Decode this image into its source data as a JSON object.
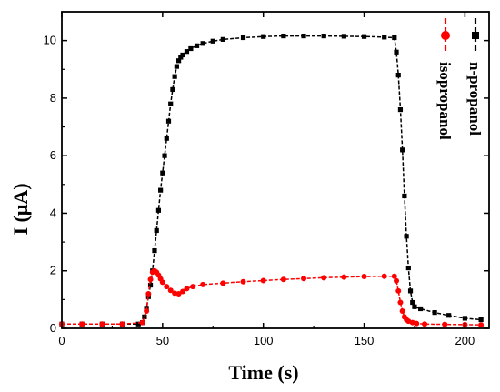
{
  "chart_data": {
    "type": "line",
    "xlabel": "Time (s)",
    "ylabel": "I (μA)",
    "xlim": [
      0,
      212
    ],
    "ylim": [
      0,
      11
    ],
    "xticks": [
      0,
      50,
      100,
      150,
      200
    ],
    "yticks": [
      0,
      2,
      4,
      6,
      8,
      10
    ],
    "legend_placement": "top-right",
    "grid": false,
    "series": [
      {
        "name": "n-propanol",
        "color": "#000000",
        "marker": "square",
        "x": [
          0,
          10,
          20,
          30,
          38,
          40,
          41,
          42,
          43,
          44,
          45,
          46,
          47,
          48,
          49,
          50,
          51,
          52,
          53,
          54,
          55,
          56,
          57,
          58,
          59,
          60,
          62,
          64,
          67,
          70,
          75,
          80,
          90,
          100,
          110,
          120,
          130,
          140,
          150,
          160,
          165,
          166,
          167,
          168,
          169,
          170,
          171,
          172,
          173,
          174,
          175,
          178,
          185,
          192,
          200,
          208
        ],
        "y": [
          0.15,
          0.15,
          0.15,
          0.15,
          0.15,
          0.2,
          0.4,
          0.7,
          1.1,
          1.5,
          2.0,
          2.7,
          3.4,
          4.1,
          4.8,
          5.4,
          6.0,
          6.6,
          7.2,
          7.8,
          8.3,
          8.75,
          9.1,
          9.3,
          9.42,
          9.5,
          9.62,
          9.72,
          9.82,
          9.9,
          9.98,
          10.04,
          10.1,
          10.14,
          10.16,
          10.16,
          10.16,
          10.15,
          10.14,
          10.12,
          10.1,
          9.6,
          8.8,
          7.6,
          6.2,
          4.6,
          3.2,
          2.1,
          1.3,
          0.9,
          0.75,
          0.68,
          0.55,
          0.45,
          0.35,
          0.3
        ]
      },
      {
        "name": "isopropanol",
        "color": "#ff0000",
        "marker": "circle",
        "x": [
          0,
          10,
          20,
          30,
          40,
          42,
          43,
          44,
          45,
          46,
          47,
          48,
          49,
          50,
          52,
          54,
          56,
          58,
          60,
          62,
          65,
          70,
          80,
          90,
          100,
          110,
          120,
          130,
          140,
          150,
          160,
          165,
          166,
          167,
          168,
          169,
          170,
          171,
          172,
          174,
          176,
          180,
          190,
          200,
          208
        ],
        "y": [
          0.15,
          0.15,
          0.15,
          0.15,
          0.2,
          0.6,
          1.2,
          1.7,
          1.95,
          2.0,
          1.95,
          1.85,
          1.72,
          1.6,
          1.45,
          1.32,
          1.22,
          1.2,
          1.28,
          1.38,
          1.45,
          1.52,
          1.57,
          1.62,
          1.66,
          1.7,
          1.73,
          1.76,
          1.78,
          1.8,
          1.81,
          1.81,
          1.65,
          1.3,
          0.9,
          0.6,
          0.4,
          0.3,
          0.25,
          0.2,
          0.17,
          0.15,
          0.14,
          0.13,
          0.12
        ]
      }
    ]
  }
}
